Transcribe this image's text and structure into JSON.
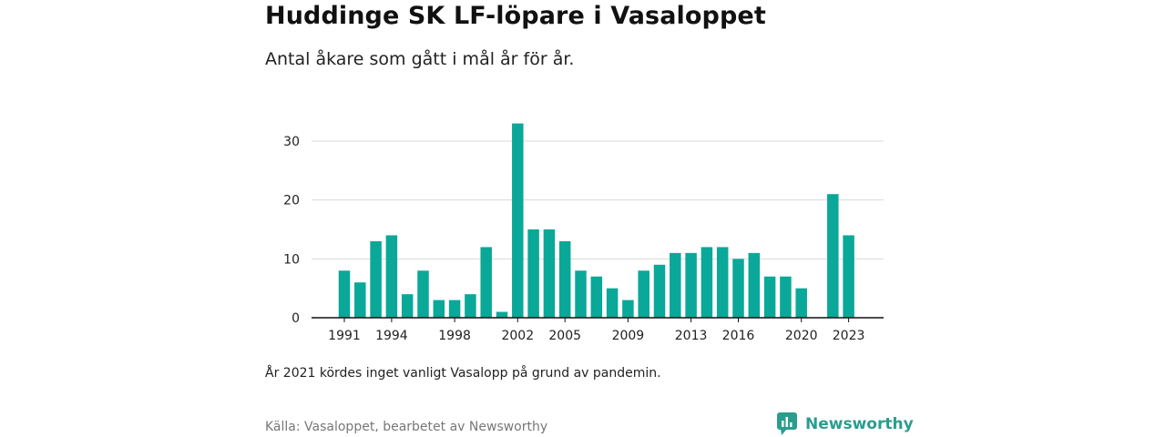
{
  "header": {
    "title": "Huddinge SK LF-löpare i Vasaloppet",
    "subtitle": "Antal åkare som gått i mål år för år."
  },
  "footer": {
    "note": "År 2021 kördes inget vanligt Vasalopp på grund av pandemin.",
    "source": "Källa: Vasaloppet, bearbetet av Newsworthy",
    "logo_text": "Newsworthy",
    "logo_icon": "newsworthy-logo-icon"
  },
  "colors": {
    "bar": "#0aa898",
    "brand": "#2a9d8f",
    "grid": "#d9d9d9",
    "axis": "#111111"
  },
  "chart_data": {
    "type": "bar",
    "title": "Huddinge SK LF-löpare i Vasaloppet",
    "subtitle": "Antal åkare som gått i mål år för år.",
    "xlabel": "",
    "ylabel": "",
    "categories": [
      1991,
      1992,
      1993,
      1994,
      1995,
      1996,
      1997,
      1998,
      1999,
      2000,
      2001,
      2002,
      2003,
      2004,
      2005,
      2006,
      2007,
      2008,
      2009,
      2010,
      2011,
      2012,
      2013,
      2014,
      2015,
      2016,
      2017,
      2018,
      2019,
      2020,
      2021,
      2022,
      2023
    ],
    "values": [
      8,
      6,
      13,
      14,
      4,
      8,
      3,
      3,
      4,
      12,
      1,
      33,
      15,
      15,
      13,
      8,
      7,
      5,
      3,
      8,
      9,
      11,
      11,
      12,
      12,
      10,
      11,
      7,
      7,
      5,
      null,
      21,
      14
    ],
    "x_tick_labels": [
      "1991",
      "1994",
      "1998",
      "2002",
      "2005",
      "2009",
      "2013",
      "2016",
      "2020",
      "2023"
    ],
    "y_ticks": [
      0,
      10,
      20,
      30
    ],
    "ylim": [
      0,
      34
    ],
    "grid": true,
    "legend": "none"
  }
}
